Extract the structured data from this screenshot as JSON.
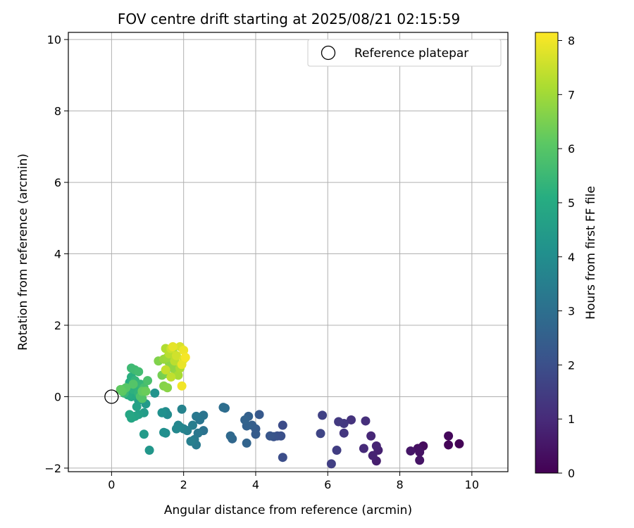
{
  "chart_data": {
    "type": "scatter",
    "title": "FOV centre drift starting at 2025/08/21 02:15:59",
    "xlabel": "Angular distance from reference (arcmin)",
    "ylabel": "Rotation from reference (arcmin)",
    "xlim": [
      -1.2,
      11.0
    ],
    "ylim": [
      -2.1,
      10.2
    ],
    "xticks": [
      "0",
      "2",
      "4",
      "6",
      "8",
      "10"
    ],
    "yticks": [
      "−2",
      "0",
      "2",
      "4",
      "6",
      "8",
      "10"
    ],
    "grid": true,
    "legend": {
      "placement": "top-right",
      "entries": [
        "Reference platepar"
      ]
    },
    "reference_point": {
      "x": 0,
      "y": 0,
      "marker": "open-circle",
      "label": "Reference platepar"
    },
    "colorbar": {
      "label": "Hours from first FF file",
      "colormap": "viridis",
      "range": [
        0,
        8.15
      ],
      "ticks": [
        "0",
        "1",
        "2",
        "3",
        "4",
        "5",
        "6",
        "7",
        "8"
      ]
    },
    "points": [
      {
        "x": 9.65,
        "y": -1.32,
        "c": 0.05
      },
      {
        "x": 9.35,
        "y": -1.35,
        "c": 0.1
      },
      {
        "x": 9.35,
        "y": -1.1,
        "c": 0.15
      },
      {
        "x": 8.65,
        "y": -1.38,
        "c": 0.25
      },
      {
        "x": 8.5,
        "y": -1.45,
        "c": 0.35
      },
      {
        "x": 8.55,
        "y": -1.55,
        "c": 0.4
      },
      {
        "x": 8.55,
        "y": -1.78,
        "c": 0.45
      },
      {
        "x": 8.3,
        "y": -1.52,
        "c": 0.5
      },
      {
        "x": 7.35,
        "y": -1.8,
        "c": 0.7
      },
      {
        "x": 7.4,
        "y": -1.5,
        "c": 0.75
      },
      {
        "x": 7.25,
        "y": -1.65,
        "c": 0.8
      },
      {
        "x": 7.35,
        "y": -1.38,
        "c": 0.85
      },
      {
        "x": 7.2,
        "y": -1.1,
        "c": 0.9
      },
      {
        "x": 7.0,
        "y": -1.45,
        "c": 1.0
      },
      {
        "x": 7.05,
        "y": -0.68,
        "c": 1.1
      },
      {
        "x": 6.65,
        "y": -0.65,
        "c": 1.2
      },
      {
        "x": 6.45,
        "y": -1.02,
        "c": 1.3
      },
      {
        "x": 6.45,
        "y": -0.75,
        "c": 1.35
      },
      {
        "x": 6.3,
        "y": -0.7,
        "c": 1.4
      },
      {
        "x": 6.25,
        "y": -1.5,
        "c": 1.5
      },
      {
        "x": 6.1,
        "y": -1.88,
        "c": 1.55
      },
      {
        "x": 5.85,
        "y": -0.52,
        "c": 1.6
      },
      {
        "x": 5.8,
        "y": -1.03,
        "c": 1.7
      },
      {
        "x": 4.75,
        "y": -0.8,
        "c": 1.9
      },
      {
        "x": 4.75,
        "y": -1.7,
        "c": 1.95
      },
      {
        "x": 4.7,
        "y": -1.1,
        "c": 2.0
      },
      {
        "x": 4.6,
        "y": -1.1,
        "c": 2.05
      },
      {
        "x": 4.5,
        "y": -1.12,
        "c": 2.1
      },
      {
        "x": 4.4,
        "y": -1.1,
        "c": 2.2
      },
      {
        "x": 4.1,
        "y": -0.5,
        "c": 2.3
      },
      {
        "x": 4.0,
        "y": -0.9,
        "c": 2.35
      },
      {
        "x": 4.0,
        "y": -1.05,
        "c": 2.4
      },
      {
        "x": 3.9,
        "y": -0.8,
        "c": 2.45
      },
      {
        "x": 3.8,
        "y": -0.55,
        "c": 2.5
      },
      {
        "x": 3.75,
        "y": -0.82,
        "c": 2.55
      },
      {
        "x": 3.7,
        "y": -0.65,
        "c": 2.6
      },
      {
        "x": 3.75,
        "y": -1.3,
        "c": 2.65
      },
      {
        "x": 3.35,
        "y": -1.18,
        "c": 2.75
      },
      {
        "x": 3.3,
        "y": -1.1,
        "c": 2.8
      },
      {
        "x": 3.15,
        "y": -0.32,
        "c": 2.9
      },
      {
        "x": 3.1,
        "y": -0.3,
        "c": 2.95
      },
      {
        "x": 2.55,
        "y": -0.95,
        "c": 3.1
      },
      {
        "x": 2.55,
        "y": -0.52,
        "c": 3.15
      },
      {
        "x": 2.45,
        "y": -0.65,
        "c": 3.2
      },
      {
        "x": 2.4,
        "y": -1.02,
        "c": 3.25
      },
      {
        "x": 2.35,
        "y": -0.55,
        "c": 3.3
      },
      {
        "x": 2.35,
        "y": -1.35,
        "c": 3.35
      },
      {
        "x": 2.3,
        "y": -1.2,
        "c": 3.4
      },
      {
        "x": 2.25,
        "y": -0.8,
        "c": 3.45
      },
      {
        "x": 2.2,
        "y": -1.25,
        "c": 3.5
      },
      {
        "x": 2.1,
        "y": -0.95,
        "c": 3.55
      },
      {
        "x": 2.0,
        "y": -0.9,
        "c": 3.6
      },
      {
        "x": 1.95,
        "y": -0.35,
        "c": 3.65
      },
      {
        "x": 1.9,
        "y": -0.85,
        "c": 3.7
      },
      {
        "x": 1.85,
        "y": -0.8,
        "c": 3.75
      },
      {
        "x": 1.8,
        "y": -0.9,
        "c": 3.8
      },
      {
        "x": 1.55,
        "y": -0.5,
        "c": 3.9
      },
      {
        "x": 1.5,
        "y": -0.42,
        "c": 3.95
      },
      {
        "x": 1.5,
        "y": -1.02,
        "c": 4.0
      },
      {
        "x": 1.45,
        "y": -1.0,
        "c": 4.05
      },
      {
        "x": 1.4,
        "y": -0.45,
        "c": 4.1
      },
      {
        "x": 1.2,
        "y": 0.1,
        "c": 4.2
      },
      {
        "x": 1.05,
        "y": -1.5,
        "c": 4.3
      },
      {
        "x": 0.95,
        "y": -0.2,
        "c": 4.4
      },
      {
        "x": 0.9,
        "y": -1.05,
        "c": 4.45
      },
      {
        "x": 0.9,
        "y": -0.45,
        "c": 4.5
      },
      {
        "x": 0.75,
        "y": -0.1,
        "c": 4.6
      },
      {
        "x": 0.75,
        "y": -0.5,
        "c": 4.65
      },
      {
        "x": 0.7,
        "y": -0.28,
        "c": 4.7
      },
      {
        "x": 0.65,
        "y": -0.55,
        "c": 4.75
      },
      {
        "x": 0.55,
        "y": -0.6,
        "c": 4.8
      },
      {
        "x": 0.5,
        "y": -0.5,
        "c": 4.85
      },
      {
        "x": 0.55,
        "y": 0.0,
        "c": 4.95
      },
      {
        "x": 0.6,
        "y": 0.1,
        "c": 5.0
      },
      {
        "x": 0.45,
        "y": 0.05,
        "c": 5.05
      },
      {
        "x": 0.5,
        "y": 0.4,
        "c": 5.1
      },
      {
        "x": 0.55,
        "y": 0.55,
        "c": 5.15
      },
      {
        "x": 0.6,
        "y": 0.2,
        "c": 5.2
      },
      {
        "x": 0.7,
        "y": 0.3,
        "c": 5.25
      },
      {
        "x": 0.75,
        "y": 0.1,
        "c": 5.3
      },
      {
        "x": 0.65,
        "y": 0.45,
        "c": 5.35
      },
      {
        "x": 0.8,
        "y": 0.35,
        "c": 5.4
      },
      {
        "x": 0.35,
        "y": 0.1,
        "c": 5.45
      },
      {
        "x": 0.3,
        "y": 0.2,
        "c": 5.5
      },
      {
        "x": 0.55,
        "y": 0.8,
        "c": 5.55
      },
      {
        "x": 0.65,
        "y": 0.75,
        "c": 5.6
      },
      {
        "x": 0.75,
        "y": 0.7,
        "c": 5.65
      },
      {
        "x": 0.9,
        "y": 0.25,
        "c": 5.7
      },
      {
        "x": 1.0,
        "y": 0.45,
        "c": 5.8
      },
      {
        "x": 0.8,
        "y": 0.0,
        "c": 5.85
      },
      {
        "x": 0.85,
        "y": -0.05,
        "c": 5.9
      },
      {
        "x": 0.6,
        "y": 0.35,
        "c": 5.95
      },
      {
        "x": 0.4,
        "y": 0.25,
        "c": 6.0
      },
      {
        "x": 0.3,
        "y": 0.15,
        "c": 6.1
      },
      {
        "x": 0.25,
        "y": 0.2,
        "c": 6.15
      },
      {
        "x": 0.85,
        "y": 0.15,
        "c": 6.2
      },
      {
        "x": 0.95,
        "y": 0.15,
        "c": 6.3
      },
      {
        "x": 1.4,
        "y": 0.6,
        "c": 6.45
      },
      {
        "x": 1.5,
        "y": 0.65,
        "c": 6.5
      },
      {
        "x": 1.3,
        "y": 1.0,
        "c": 6.6
      },
      {
        "x": 1.45,
        "y": 0.3,
        "c": 6.65
      },
      {
        "x": 1.55,
        "y": 0.25,
        "c": 6.7
      },
      {
        "x": 1.6,
        "y": 0.95,
        "c": 6.75
      },
      {
        "x": 1.7,
        "y": 0.8,
        "c": 6.8
      },
      {
        "x": 1.8,
        "y": 0.65,
        "c": 6.85
      },
      {
        "x": 1.45,
        "y": 1.05,
        "c": 6.9
      },
      {
        "x": 1.55,
        "y": 1.1,
        "c": 6.95
      },
      {
        "x": 1.7,
        "y": 1.25,
        "c": 7.0
      },
      {
        "x": 1.85,
        "y": 0.6,
        "c": 7.1
      },
      {
        "x": 1.9,
        "y": 0.8,
        "c": 7.15
      },
      {
        "x": 1.5,
        "y": 1.35,
        "c": 7.2
      },
      {
        "x": 1.6,
        "y": 1.2,
        "c": 7.3
      },
      {
        "x": 1.75,
        "y": 1.0,
        "c": 7.35
      },
      {
        "x": 1.65,
        "y": 0.55,
        "c": 7.4
      },
      {
        "x": 1.5,
        "y": 0.75,
        "c": 7.45
      },
      {
        "x": 1.65,
        "y": 1.35,
        "c": 7.55
      },
      {
        "x": 1.8,
        "y": 1.15,
        "c": 7.6
      },
      {
        "x": 1.9,
        "y": 1.4,
        "c": 7.7
      },
      {
        "x": 2.0,
        "y": 1.05,
        "c": 7.75
      },
      {
        "x": 1.7,
        "y": 1.4,
        "c": 7.85
      },
      {
        "x": 1.95,
        "y": 0.9,
        "c": 7.9
      },
      {
        "x": 2.0,
        "y": 1.3,
        "c": 7.95
      },
      {
        "x": 1.95,
        "y": 0.3,
        "c": 8.0
      },
      {
        "x": 2.05,
        "y": 1.1,
        "c": 8.05
      }
    ]
  }
}
